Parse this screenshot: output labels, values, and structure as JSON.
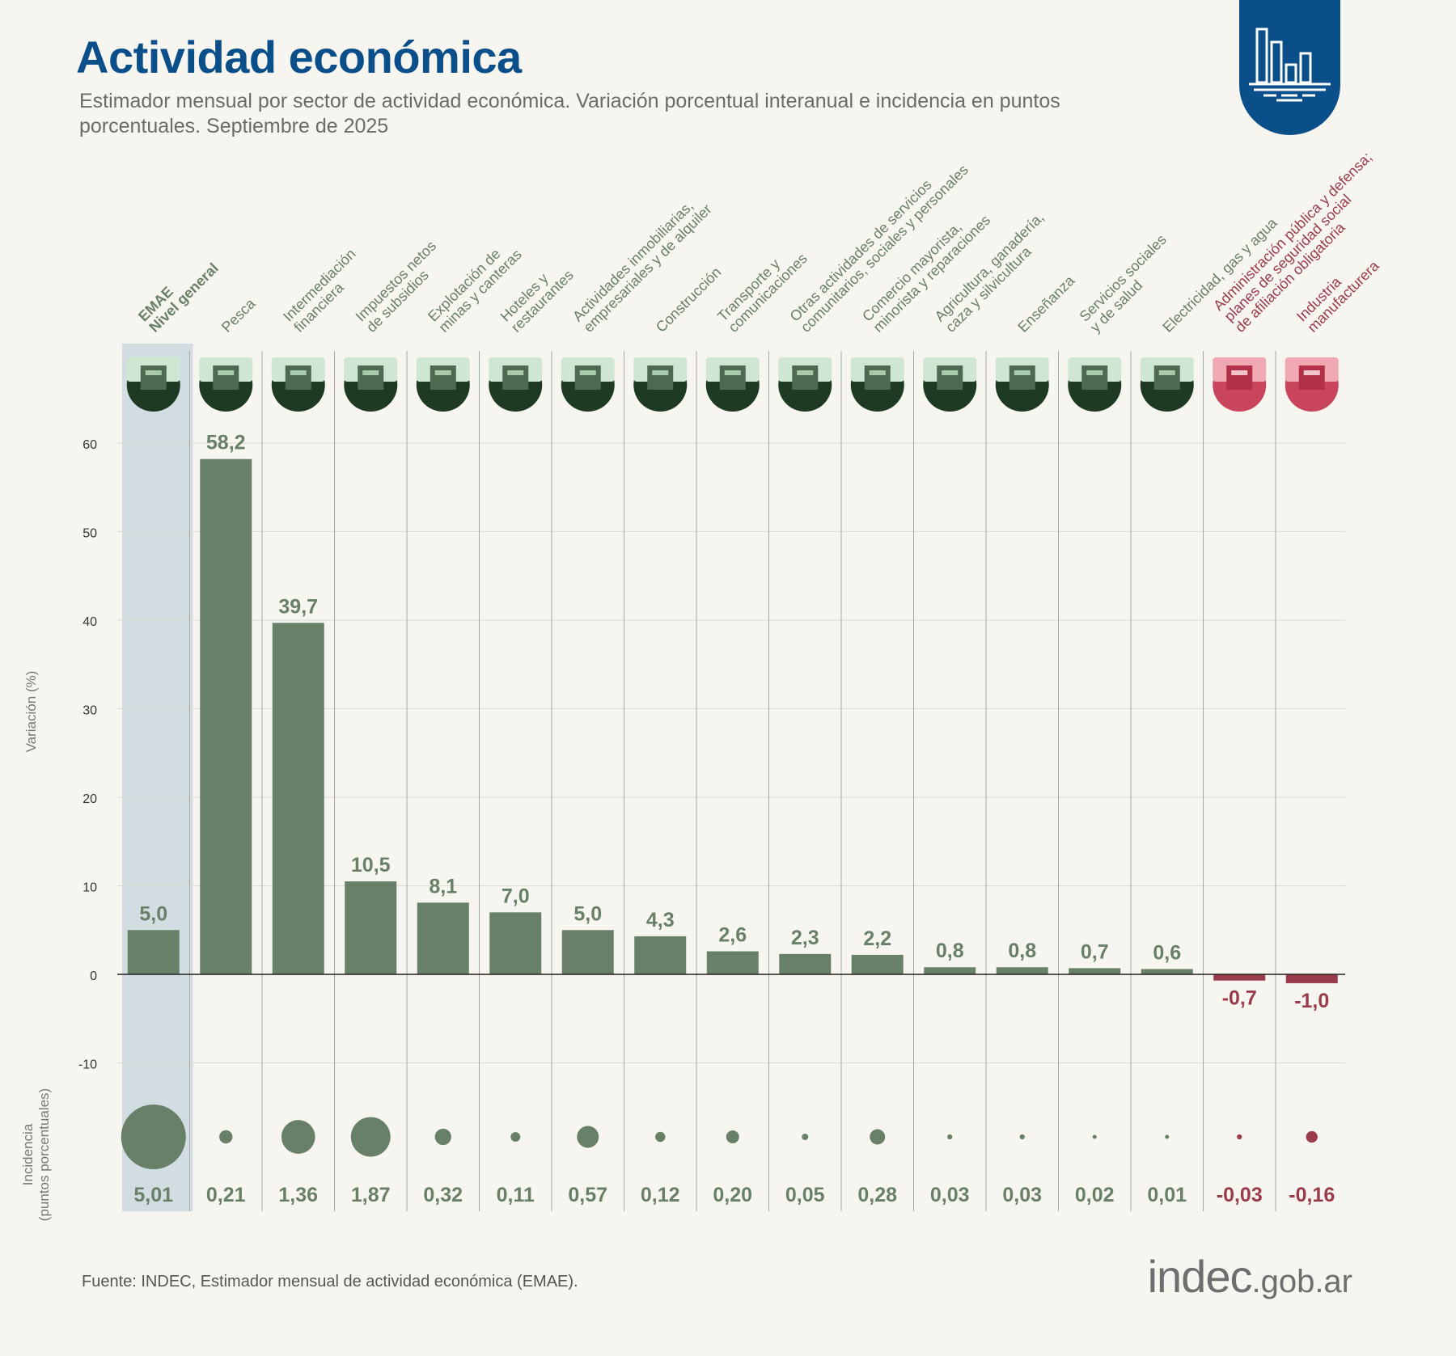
{
  "header": {
    "title": "Actividad económica",
    "subtitle": "Estimador mensual por sector de actividad económica. Variación porcentual interanual e incidencia en puntos porcentuales. Septiembre de 2025",
    "logo_icon": "bar-chart-icon"
  },
  "footer": {
    "source": "Fuente: INDEC, Estimador mensual de actividad económica (EMAE).",
    "brand": "indec",
    "brand_suffix": ".gob.ar"
  },
  "colors": {
    "positive": "#687f68",
    "negative": "#9a3b4c",
    "title": "#0b4f8a",
    "highlight_band": "#d1dde0"
  },
  "chart_data": {
    "type": "bar",
    "title": "Actividad económica",
    "ylabel": "Variación (%)",
    "bubble_label": [
      "Incidencia",
      "(puntos porcentuales)"
    ],
    "ylim": [
      -10,
      60
    ],
    "yticks": [
      -10,
      0,
      10,
      20,
      30,
      40,
      50,
      60
    ],
    "categories": [
      {
        "label": [
          "EMAE",
          "Nivel general"
        ],
        "variation": 5.0,
        "variation_label": "5,0",
        "incidence": 5.01,
        "incidence_label": "5,01",
        "highlight": true,
        "icon": "emae-icon"
      },
      {
        "label": [
          "Pesca"
        ],
        "variation": 58.2,
        "variation_label": "58,2",
        "incidence": 0.21,
        "incidence_label": "0,21",
        "icon": "fishing-icon"
      },
      {
        "label": [
          "Intermediación",
          "financiera"
        ],
        "variation": 39.7,
        "variation_label": "39,7",
        "incidence": 1.36,
        "incidence_label": "1,36",
        "icon": "bank-icon"
      },
      {
        "label": [
          "Impuestos netos",
          "de subsidios"
        ],
        "variation": 10.5,
        "variation_label": "10,5",
        "incidence": 1.87,
        "incidence_label": "1,87",
        "icon": "taxes-icon"
      },
      {
        "label": [
          "Explotación de",
          "minas y canteras"
        ],
        "variation": 8.1,
        "variation_label": "8,1",
        "incidence": 0.32,
        "incidence_label": "0,32",
        "icon": "oil-pump-icon"
      },
      {
        "label": [
          "Hoteles y",
          "restaurantes"
        ],
        "variation": 7.0,
        "variation_label": "7,0",
        "incidence": 0.11,
        "incidence_label": "0,11",
        "icon": "hotel-icon"
      },
      {
        "label": [
          "Actividades inmobiliarias,",
          "empresariales y de alquiler"
        ],
        "variation": 5.0,
        "variation_label": "5,0",
        "incidence": 0.57,
        "incidence_label": "0,57",
        "icon": "real-estate-icon"
      },
      {
        "label": [
          "Construcción"
        ],
        "variation": 4.3,
        "variation_label": "4,3",
        "incidence": 0.12,
        "incidence_label": "0,12",
        "icon": "construction-truck-icon"
      },
      {
        "label": [
          "Transporte y",
          "comunicaciones"
        ],
        "variation": 2.6,
        "variation_label": "2,6",
        "incidence": 0.2,
        "incidence_label": "0,20",
        "icon": "transport-icon"
      },
      {
        "label": [
          "Otras actividades de servicios",
          "comunitarios, sociales y personales"
        ],
        "variation": 2.3,
        "variation_label": "2,3",
        "incidence": 0.05,
        "incidence_label": "0,05",
        "icon": "theater-masks-icon"
      },
      {
        "label": [
          "Comercio mayorista,",
          "minorista y reparaciones"
        ],
        "variation": 2.2,
        "variation_label": "2,2",
        "incidence": 0.28,
        "incidence_label": "0,28",
        "icon": "shopping-cart-icon"
      },
      {
        "label": [
          "Agricultura, ganadería,",
          "caza y silvicultura"
        ],
        "variation": 0.8,
        "variation_label": "0,8",
        "incidence": 0.03,
        "incidence_label": "0,03",
        "icon": "agriculture-icon"
      },
      {
        "label": [
          "Enseñanza"
        ],
        "variation": 0.8,
        "variation_label": "0,8",
        "incidence": 0.03,
        "incidence_label": "0,03",
        "icon": "school-desk-icon"
      },
      {
        "label": [
          "Servicios sociales",
          "y de salud"
        ],
        "variation": 0.7,
        "variation_label": "0,7",
        "incidence": 0.02,
        "incidence_label": "0,02",
        "icon": "medical-kit-icon"
      },
      {
        "label": [
          "Electricidad, gas y agua"
        ],
        "variation": 0.6,
        "variation_label": "0,6",
        "incidence": 0.01,
        "incidence_label": "0,01",
        "icon": "power-tower-icon"
      },
      {
        "label": [
          "Administración pública y defensa;",
          "planes de seguridad social",
          "de afiliación obligatoria"
        ],
        "variation": -0.7,
        "variation_label": "-0,7",
        "incidence": -0.03,
        "incidence_label": "-0,03",
        "icon": "government-building-icon"
      },
      {
        "label": [
          "Industria",
          "manufacturera"
        ],
        "variation": -1.0,
        "variation_label": "-1,0",
        "incidence": -0.16,
        "incidence_label": "-0,16",
        "icon": "gears-icon"
      }
    ]
  }
}
